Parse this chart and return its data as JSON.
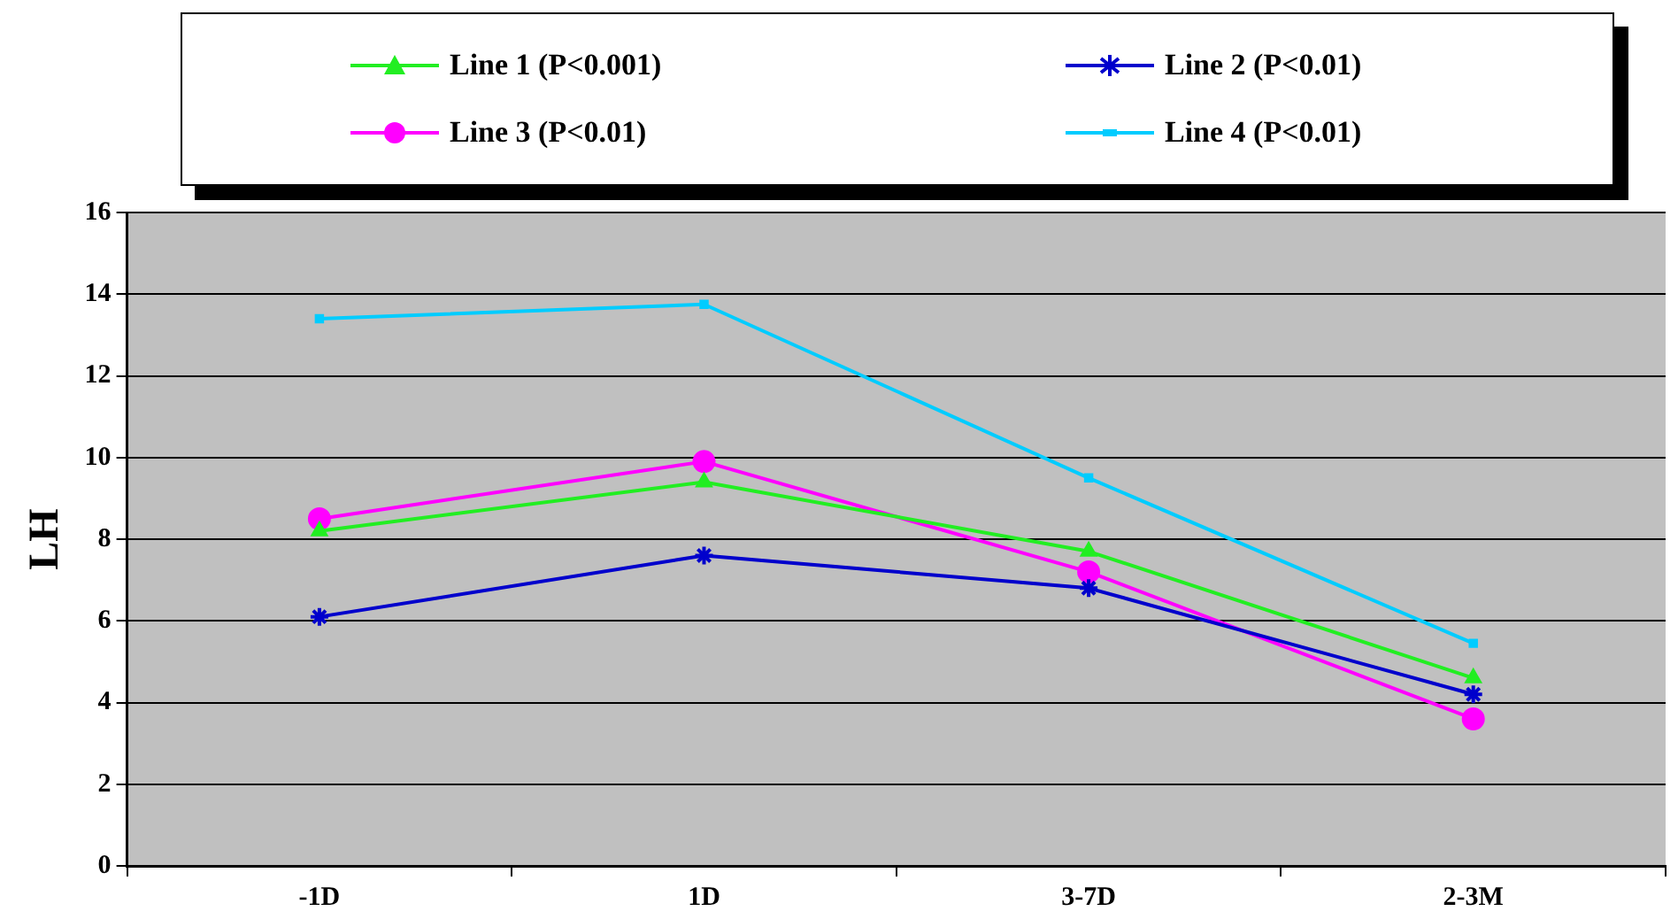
{
  "chart_data": {
    "type": "line",
    "ylabel": "LH",
    "categories": [
      "-1D",
      "1D",
      "3-7D",
      "2-3M"
    ],
    "ylim": [
      0,
      16
    ],
    "yticks": [
      0,
      2,
      4,
      6,
      8,
      10,
      12,
      14,
      16
    ],
    "grid": "y",
    "legend": "top",
    "series": [
      {
        "name": "Line 1 (P<0.001)",
        "color": "#22ee22",
        "marker": "triangle",
        "values": [
          8.2,
          9.4,
          7.7,
          4.6
        ]
      },
      {
        "name": "Line 2 (P<0.01)",
        "color": "#0000cc",
        "marker": "cross",
        "values": [
          6.1,
          7.6,
          6.8,
          4.2
        ]
      },
      {
        "name": "Line 3 (P<0.01)",
        "color": "#ff00ff",
        "marker": "circle",
        "values": [
          8.5,
          9.9,
          7.2,
          3.6
        ]
      },
      {
        "name": "Line 4 (P<0.01)",
        "color": "#00ccff",
        "marker": "square",
        "values": [
          13.4,
          13.75,
          9.5,
          5.45
        ]
      }
    ]
  }
}
